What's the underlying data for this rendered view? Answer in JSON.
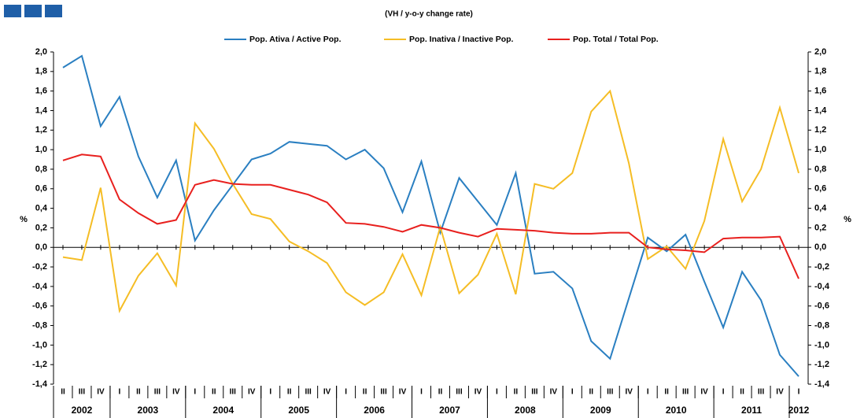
{
  "chart_data": {
    "type": "line",
    "subtitle": "(VH / y-o-y change rate)",
    "y_label": "%",
    "y2_label": "%",
    "categories": [
      "II",
      "III",
      "IV",
      "I",
      "II",
      "III",
      "IV",
      "I",
      "II",
      "III",
      "IV",
      "I",
      "II",
      "III",
      "IV",
      "I",
      "II",
      "III",
      "IV",
      "I",
      "II",
      "III",
      "IV",
      "I",
      "II",
      "III",
      "IV",
      "I",
      "II",
      "III",
      "IV",
      "I",
      "II",
      "III",
      "IV",
      "I",
      "II",
      "III",
      "IV",
      "I"
    ],
    "years": [
      {
        "label": "2002",
        "count": 3
      },
      {
        "label": "2003",
        "count": 4
      },
      {
        "label": "2004",
        "count": 4
      },
      {
        "label": "2005",
        "count": 4
      },
      {
        "label": "2006",
        "count": 4
      },
      {
        "label": "2007",
        "count": 4
      },
      {
        "label": "2008",
        "count": 4
      },
      {
        "label": "2009",
        "count": 4
      },
      {
        "label": "2010",
        "count": 4
      },
      {
        "label": "2011",
        "count": 4
      },
      {
        "label": "2012",
        "count": 1
      }
    ],
    "series": [
      {
        "name": "Pop. Ativa / Active Pop.",
        "color": "#2a7fc1",
        "values": [
          1.84,
          1.96,
          1.24,
          1.54,
          0.93,
          0.51,
          0.89,
          0.07,
          0.38,
          0.64,
          0.9,
          0.96,
          1.08,
          1.06,
          1.04,
          0.9,
          1.0,
          0.81,
          0.36,
          0.88,
          0.15,
          0.71,
          0.47,
          0.23,
          0.76,
          -0.27,
          -0.25,
          -0.42,
          -0.96,
          -1.14,
          -0.52,
          0.1,
          -0.04,
          0.13,
          -0.35,
          -0.82,
          -0.25,
          -0.54,
          -1.1,
          -1.32
        ]
      },
      {
        "name": "Pop. Inativa / Inactive Pop.",
        "color": "#f5bd25",
        "values": [
          -0.1,
          -0.13,
          0.61,
          -0.65,
          -0.29,
          -0.06,
          -0.39,
          1.27,
          1.01,
          0.65,
          0.34,
          0.29,
          0.06,
          -0.04,
          -0.16,
          -0.46,
          -0.59,
          -0.46,
          -0.07,
          -0.49,
          0.21,
          -0.47,
          -0.28,
          0.14,
          -0.48,
          0.65,
          0.6,
          0.76,
          1.39,
          1.6,
          0.86,
          -0.12,
          0.01,
          -0.22,
          0.27,
          1.11,
          0.47,
          0.8,
          1.43,
          0.76
        ]
      },
      {
        "name": "Pop. Total / Total Pop.",
        "color": "#e8201e",
        "values": [
          0.89,
          0.95,
          0.93,
          0.49,
          0.35,
          0.24,
          0.28,
          0.64,
          0.69,
          0.65,
          0.64,
          0.64,
          0.59,
          0.54,
          0.46,
          0.25,
          0.24,
          0.21,
          0.16,
          0.23,
          0.2,
          0.15,
          0.11,
          0.19,
          0.18,
          0.17,
          0.15,
          0.14,
          0.14,
          0.15,
          0.15,
          0.0,
          -0.02,
          -0.03,
          -0.05,
          0.09,
          0.1,
          0.1,
          0.11,
          -0.32
        ]
      }
    ],
    "ylim": [
      -1.4,
      2.0
    ],
    "yticks": [
      {
        "value": -1.4,
        "label": "-1,4"
      },
      {
        "value": -1.2,
        "label": "-1,2"
      },
      {
        "value": -1.0,
        "label": "-1,0"
      },
      {
        "value": -0.8,
        "label": "-0,8"
      },
      {
        "value": -0.6,
        "label": "-0,6"
      },
      {
        "value": -0.4,
        "label": "-0,4"
      },
      {
        "value": -0.2,
        "label": "-0,2"
      },
      {
        "value": 0,
        "label": "0,0"
      },
      {
        "value": 0.2,
        "label": "0,2"
      },
      {
        "value": 0.4,
        "label": "0,4"
      },
      {
        "value": 0.6,
        "label": "0,6"
      },
      {
        "value": 0.8,
        "label": "0,8"
      },
      {
        "value": 1.0,
        "label": "1,0"
      },
      {
        "value": 1.2,
        "label": "1,2"
      },
      {
        "value": 1.4,
        "label": "1,4"
      },
      {
        "value": 1.6,
        "label": "1,6"
      },
      {
        "value": 1.8,
        "label": "1,8"
      },
      {
        "value": 2.0,
        "label": "2,0"
      }
    ],
    "y2lim": [
      -1.4,
      2.0
    ],
    "y2ticks": [
      {
        "value": -1.4,
        "label": "-1,4"
      },
      {
        "value": -1.2,
        "label": "-1,2"
      },
      {
        "value": -1.0,
        "label": "-1,0"
      },
      {
        "value": -0.8,
        "label": "-0,8"
      },
      {
        "value": -0.6,
        "label": "-0,6"
      },
      {
        "value": -0.4,
        "label": "-0,4"
      },
      {
        "value": -0.2,
        "label": "-0,2"
      },
      {
        "value": 0,
        "label": "0,0"
      },
      {
        "value": 0.2,
        "label": "0,2"
      },
      {
        "value": 0.4,
        "label": "0,4"
      },
      {
        "value": 0.6,
        "label": "0,6"
      },
      {
        "value": 0.8,
        "label": "0,8"
      },
      {
        "value": 1.0,
        "label": "1,0"
      },
      {
        "value": 1.2,
        "label": "1,2"
      },
      {
        "value": 1.4,
        "label": "1,4"
      },
      {
        "value": 1.6,
        "label": "1,6"
      },
      {
        "value": 1.8,
        "label": "1,8"
      },
      {
        "value": 2.0,
        "label": "2,0"
      }
    ],
    "grid": false,
    "legend": "top"
  }
}
